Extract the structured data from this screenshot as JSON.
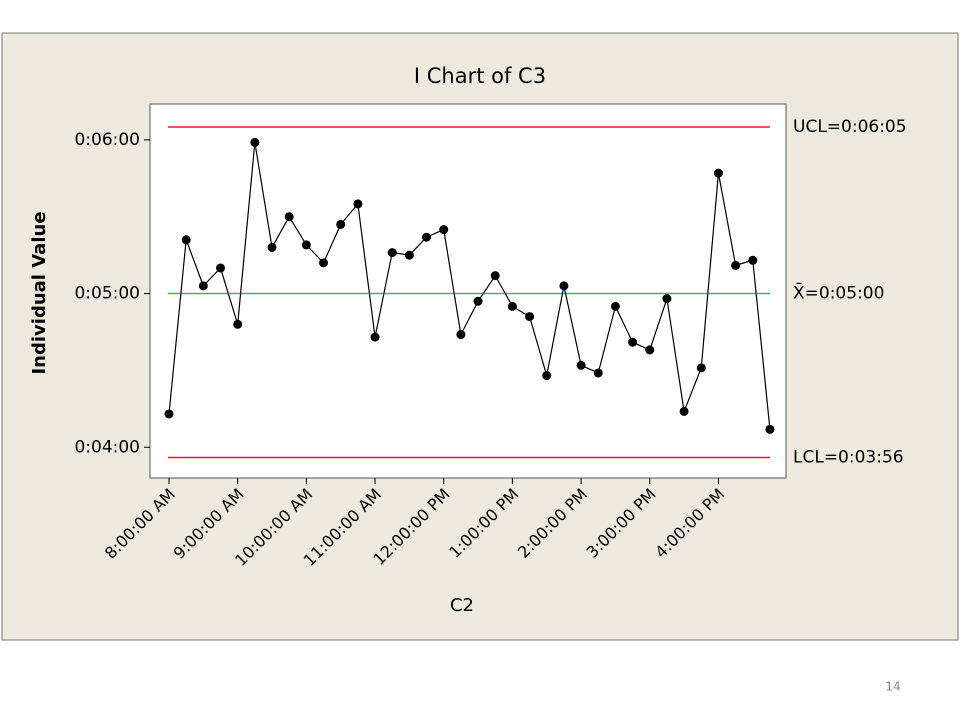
{
  "chart_data": {
    "type": "line",
    "title": "I Chart of C3",
    "xlabel": "C2",
    "ylabel": "Individual Value",
    "categories": [
      "8:00:00 AM",
      null,
      null,
      null,
      "9:00:00 AM",
      null,
      null,
      null,
      "10:00:00 AM",
      null,
      null,
      null,
      "11:00:00 AM",
      null,
      null,
      null,
      "12:00:00 PM",
      null,
      null,
      null,
      "1:00:00 PM",
      null,
      null,
      null,
      "2:00:00 PM",
      null,
      null,
      null,
      "3:00:00 PM",
      null,
      null,
      null,
      "4:00:00 PM",
      null,
      null,
      null
    ],
    "series": [
      {
        "color": "#000000",
        "values": [
          253,
          321,
          303,
          310,
          288,
          359,
          318,
          330,
          319,
          312,
          327,
          335,
          283,
          316,
          315,
          322,
          325,
          284,
          297,
          307,
          295,
          291,
          268,
          303,
          272,
          269,
          295,
          281,
          278,
          298,
          254,
          271,
          347,
          311,
          313,
          247
        ]
      }
    ],
    "ylim": [
      228,
      374
    ],
    "yticks": [
      {
        "value": 240,
        "label": "0:04:00"
      },
      {
        "value": 300,
        "label": "0:05:00"
      },
      {
        "value": 360,
        "label": "0:06:00"
      }
    ],
    "control_lines": [
      {
        "label": "UCL=0:06:05",
        "value": 365,
        "color": "#e02020"
      },
      {
        "label": "X̄=0:05:00",
        "value": 300,
        "color": "#20d020"
      },
      {
        "label": "LCL=0:03:56",
        "value": 236,
        "color": "#e02020"
      }
    ]
  },
  "page_number": "14"
}
